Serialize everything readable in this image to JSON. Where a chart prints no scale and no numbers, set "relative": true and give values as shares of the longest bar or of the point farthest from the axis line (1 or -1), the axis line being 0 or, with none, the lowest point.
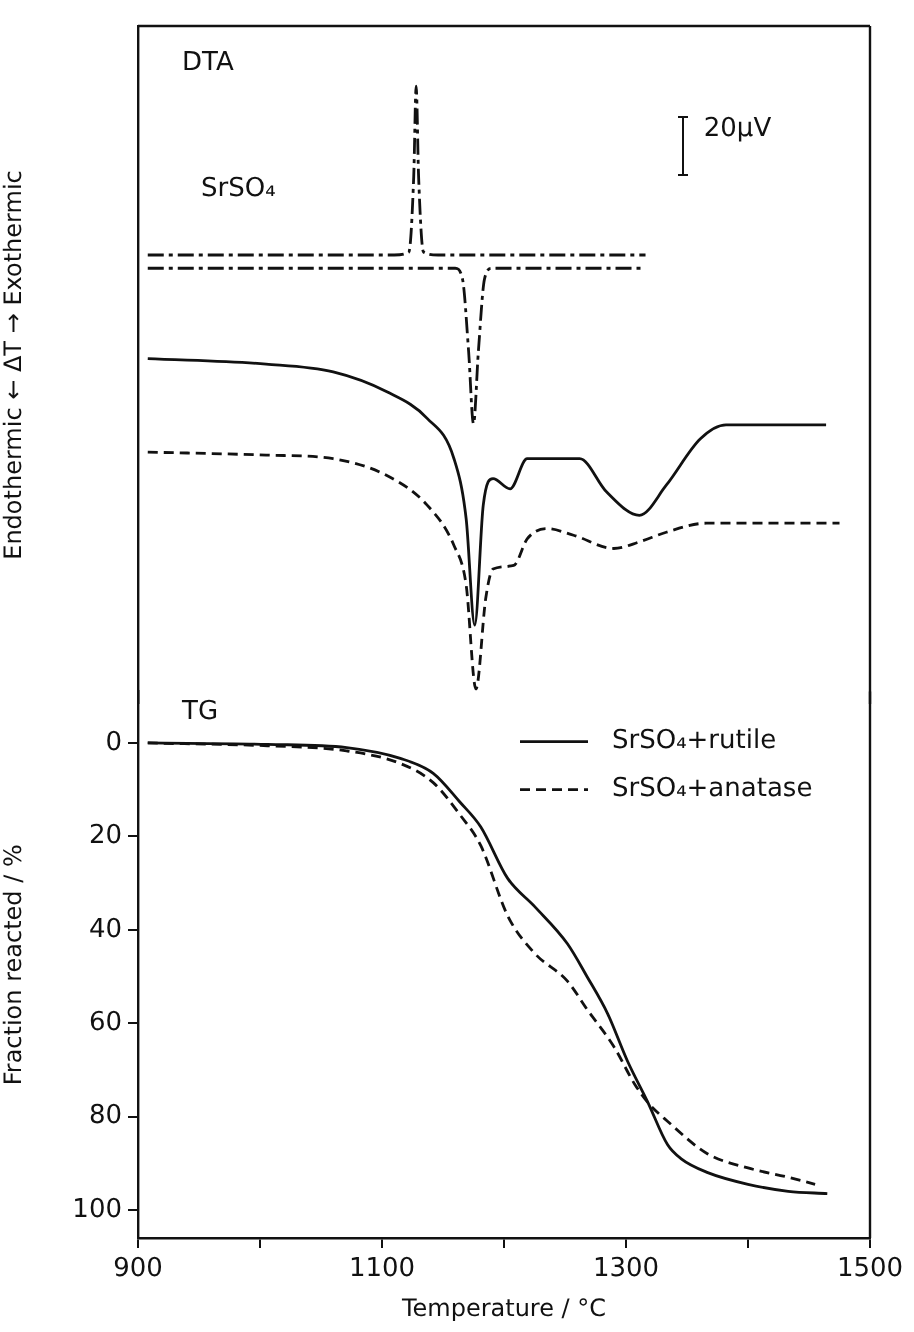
{
  "chart_data": [
    {
      "type": "line",
      "title": "DTA",
      "ylabel": "Endothermic ← ΔT → Exothermic",
      "relative": true,
      "xlim": [
        900,
        1500
      ],
      "annotations": [
        "SrSO₄",
        "20μV"
      ],
      "series": [
        {
          "color": "#111111",
          "line_style": "dashdot",
          "x": [
            908,
            1110,
            1122,
            1126,
            1128,
            1130,
            1134,
            1146,
            1316
          ],
          "values": [
            0.72,
            0.72,
            0.725,
            0.85,
            1.0,
            0.85,
            0.725,
            0.72,
            0.72
          ]
        },
        {
          "color": "#111111",
          "line_style": "dashdot",
          "x": [
            908,
            1160,
            1166,
            1171,
            1175,
            1179,
            1184,
            1190,
            1316
          ],
          "values": [
            0.698,
            0.698,
            0.68,
            0.56,
            0.44,
            0.56,
            0.68,
            0.698,
            0.698
          ]
        },
        {
          "color": "#111111",
          "line_style": "solid",
          "x": [
            908,
            1005,
            1060,
            1104,
            1137,
            1159,
            1169,
            1176,
            1183,
            1191,
            1205,
            1219,
            1262,
            1284,
            1311,
            1333,
            1361,
            1382,
            1464
          ],
          "values": [
            0.548,
            0.539,
            0.526,
            0.493,
            0.449,
            0.382,
            0.282,
            0.106,
            0.305,
            0.349,
            0.332,
            0.382,
            0.382,
            0.327,
            0.288,
            0.338,
            0.415,
            0.438,
            0.438
          ]
        },
        {
          "color": "#111111",
          "line_style": "dashed",
          "x": [
            908,
            1005,
            1060,
            1104,
            1137,
            1159,
            1169,
            1177,
            1185,
            1191,
            1208,
            1219,
            1235,
            1257,
            1290,
            1311,
            1333,
            1366,
            1475
          ],
          "values": [
            0.393,
            0.388,
            0.382,
            0.354,
            0.305,
            0.238,
            0.172,
            0,
            0.15,
            0.199,
            0.205,
            0.249,
            0.266,
            0.255,
            0.233,
            0.244,
            0.26,
            0.275,
            0.275
          ]
        }
      ]
    },
    {
      "type": "line",
      "title": "TG",
      "xlabel": "Temperature / °C",
      "ylabel": "Fraction reacted / %",
      "xlim": [
        900,
        1500
      ],
      "xticks": [
        900,
        {
          "value": 1000,
          "label": null
        },
        1100,
        {
          "value": 1200,
          "label": null
        },
        1300,
        {
          "value": 1400,
          "label": null
        },
        1500
      ],
      "ylim": [
        106,
        -11
      ],
      "yticks": [
        0,
        20,
        40,
        60,
        80,
        100
      ],
      "legend": "top right",
      "series": [
        {
          "name": "SrSO₄+rutile",
          "color": "#111111",
          "line_style": "solid",
          "x": [
            908,
            1006,
            1071,
            1115,
            1142,
            1164,
            1181,
            1203,
            1225,
            1252,
            1268,
            1285,
            1301,
            1318,
            1334,
            1345,
            1367,
            1400,
            1433,
            1465
          ],
          "values": [
            0,
            0.3,
            1,
            3.3,
            6.5,
            12.7,
            18,
            29,
            35,
            43,
            50,
            58,
            68,
            77,
            86,
            89,
            92,
            94.5,
            96,
            96.5
          ]
        },
        {
          "name": "SrSO₄+anatase",
          "color": "#111111",
          "line_style": "dashed",
          "x": [
            908,
            1006,
            1071,
            1115,
            1142,
            1164,
            1181,
            1203,
            1225,
            1252,
            1268,
            1290,
            1307,
            1318,
            1334,
            1367,
            1400,
            1433,
            1455
          ],
          "values": [
            0,
            0.6,
            1.7,
            4.4,
            8.5,
            15.4,
            22,
            37,
            45,
            51,
            57,
            65,
            73,
            77,
            81,
            88,
            91,
            93,
            94.5
          ]
        }
      ]
    }
  ]
}
